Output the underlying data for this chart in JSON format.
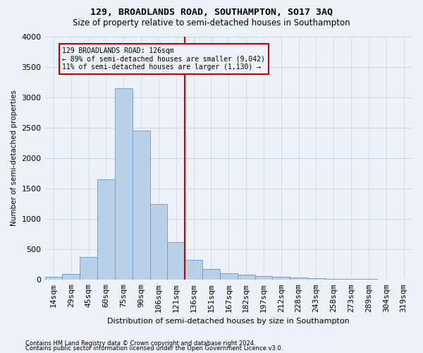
{
  "title1": "129, BROADLANDS ROAD, SOUTHAMPTON, SO17 3AQ",
  "title2": "Size of property relative to semi-detached houses in Southampton",
  "xlabel": "Distribution of semi-detached houses by size in Southampton",
  "ylabel": "Number of semi-detached properties",
  "footnote1": "Contains HM Land Registry data © Crown copyright and database right 2024.",
  "footnote2": "Contains public sector information licensed under the Open Government Licence v3.0.",
  "annotation_title": "129 BROADLANDS ROAD: 126sqm",
  "annotation_line1": "← 89% of semi-detached houses are smaller (9,042)",
  "annotation_line2": "11% of semi-detached houses are larger (1,130) →",
  "bar_color": "#b8d0e8",
  "bar_edge_color": "#6699cc",
  "vline_color": "#cc0000",
  "grid_color": "#c8d4e4",
  "background_color": "#eef2f8",
  "categories": [
    "14sqm",
    "29sqm",
    "45sqm",
    "60sqm",
    "75sqm",
    "90sqm",
    "106sqm",
    "121sqm",
    "136sqm",
    "151sqm",
    "167sqm",
    "182sqm",
    "197sqm",
    "212sqm",
    "228sqm",
    "243sqm",
    "258sqm",
    "273sqm",
    "289sqm",
    "304sqm",
    "319sqm"
  ],
  "values": [
    50,
    100,
    380,
    1650,
    3150,
    2450,
    1250,
    620,
    330,
    175,
    110,
    80,
    65,
    55,
    40,
    30,
    20,
    15,
    10,
    5,
    3
  ],
  "ylim_max": 4000,
  "yticks": [
    0,
    500,
    1000,
    1500,
    2000,
    2500,
    3000,
    3500,
    4000
  ],
  "vline_position": 7.5,
  "fig_width": 6.0,
  "fig_height": 5.0,
  "dpi": 100
}
